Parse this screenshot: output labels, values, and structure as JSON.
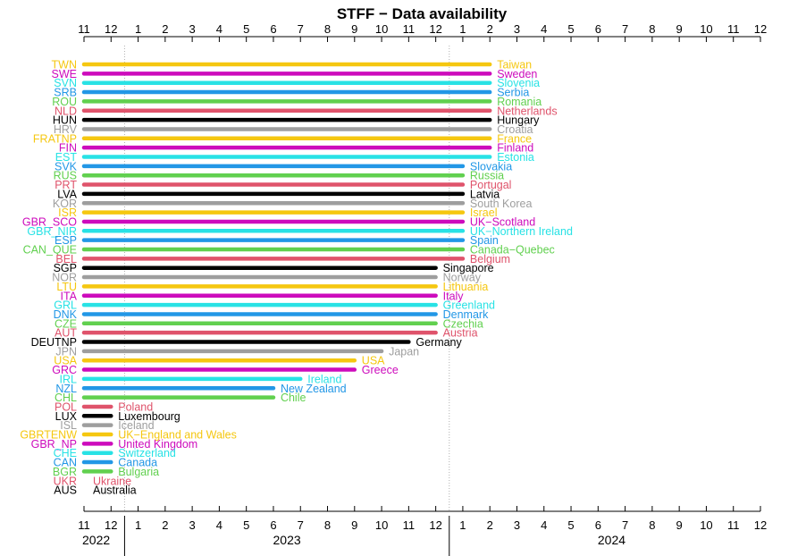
{
  "chart_data": {
    "type": "timeline",
    "title": "STFF − Data availability",
    "x_axis": {
      "unit": "month",
      "start": "2022-11",
      "end": "2024-12",
      "tick_labels": [
        "11",
        "12",
        "1",
        "2",
        "3",
        "4",
        "5",
        "6",
        "7",
        "8",
        "9",
        "10",
        "11",
        "12",
        "1",
        "2",
        "3",
        "4",
        "5",
        "6",
        "7",
        "8",
        "9",
        "10",
        "11",
        "12"
      ],
      "years": [
        {
          "label": "2022",
          "start": "2022-11"
        },
        {
          "label": "2023",
          "start": "2023-01"
        },
        {
          "label": "2024",
          "start": "2024-01"
        }
      ]
    },
    "colors": {
      "yellow": "#F5C710",
      "magenta": "#CD0BBC",
      "cyan": "#28E2E5",
      "blue": "#2297E6",
      "green": "#61D04F",
      "red": "#DF536B",
      "black": "#000000",
      "gray": "#9E9E9E"
    },
    "series": [
      {
        "code": "TWN",
        "name": "Taiwan",
        "color": "yellow",
        "start": "2022-11",
        "end": "2024-02"
      },
      {
        "code": "SWE",
        "name": "Sweden",
        "color": "magenta",
        "start": "2022-11",
        "end": "2024-02"
      },
      {
        "code": "SVN",
        "name": "Slovenia",
        "color": "cyan",
        "start": "2022-11",
        "end": "2024-02"
      },
      {
        "code": "SRB",
        "name": "Serbia",
        "color": "blue",
        "start": "2022-11",
        "end": "2024-02"
      },
      {
        "code": "ROU",
        "name": "Romania",
        "color": "green",
        "start": "2022-11",
        "end": "2024-02"
      },
      {
        "code": "NLD",
        "name": "Netherlands",
        "color": "red",
        "start": "2022-11",
        "end": "2024-02"
      },
      {
        "code": "HUN",
        "name": "Hungary",
        "color": "black",
        "start": "2022-11",
        "end": "2024-02"
      },
      {
        "code": "HRV",
        "name": "Croatia",
        "color": "gray",
        "start": "2022-11",
        "end": "2024-02"
      },
      {
        "code": "FRATNP",
        "name": "France",
        "color": "yellow",
        "start": "2022-11",
        "end": "2024-02"
      },
      {
        "code": "FIN",
        "name": "Finland",
        "color": "magenta",
        "start": "2022-11",
        "end": "2024-02"
      },
      {
        "code": "EST",
        "name": "Estonia",
        "color": "cyan",
        "start": "2022-11",
        "end": "2024-02"
      },
      {
        "code": "SVK",
        "name": "Slovakia",
        "color": "blue",
        "start": "2022-11",
        "end": "2024-01"
      },
      {
        "code": "RUS",
        "name": "Russia",
        "color": "green",
        "start": "2022-11",
        "end": "2024-01"
      },
      {
        "code": "PRT",
        "name": "Portugal",
        "color": "red",
        "start": "2022-11",
        "end": "2024-01"
      },
      {
        "code": "LVA",
        "name": "Latvia",
        "color": "black",
        "start": "2022-11",
        "end": "2024-01"
      },
      {
        "code": "KOR",
        "name": "South Korea",
        "color": "gray",
        "start": "2022-11",
        "end": "2024-01"
      },
      {
        "code": "ISR",
        "name": "Israel",
        "color": "yellow",
        "start": "2022-11",
        "end": "2024-01"
      },
      {
        "code": "GBR_SCO",
        "name": "UK−Scotland",
        "color": "magenta",
        "start": "2022-11",
        "end": "2024-01"
      },
      {
        "code": "GBR_NIR",
        "name": "UK−Northern Ireland",
        "color": "cyan",
        "start": "2022-11",
        "end": "2024-01"
      },
      {
        "code": "ESP",
        "name": "Spain",
        "color": "blue",
        "start": "2022-11",
        "end": "2024-01"
      },
      {
        "code": "CAN_QUE",
        "name": "Canada−Quebec",
        "color": "green",
        "start": "2022-11",
        "end": "2024-01"
      },
      {
        "code": "BEL",
        "name": "Belgium",
        "color": "red",
        "start": "2022-11",
        "end": "2024-01"
      },
      {
        "code": "SGP",
        "name": "Singapore",
        "color": "black",
        "start": "2022-11",
        "end": "2023-12"
      },
      {
        "code": "NOR",
        "name": "Norway",
        "color": "gray",
        "start": "2022-11",
        "end": "2023-12"
      },
      {
        "code": "LTU",
        "name": "Lithuania",
        "color": "yellow",
        "start": "2022-11",
        "end": "2023-12"
      },
      {
        "code": "ITA",
        "name": "Italy",
        "color": "magenta",
        "start": "2022-11",
        "end": "2023-12"
      },
      {
        "code": "GRL",
        "name": "Greenland",
        "color": "cyan",
        "start": "2022-11",
        "end": "2023-12"
      },
      {
        "code": "DNK",
        "name": "Denmark",
        "color": "blue",
        "start": "2022-11",
        "end": "2023-12"
      },
      {
        "code": "CZE",
        "name": "Czechia",
        "color": "green",
        "start": "2022-11",
        "end": "2023-12"
      },
      {
        "code": "AUT",
        "name": "Austria",
        "color": "red",
        "start": "2022-11",
        "end": "2023-12"
      },
      {
        "code": "DEUTNP",
        "name": "Germany",
        "color": "black",
        "start": "2022-11",
        "end": "2023-11"
      },
      {
        "code": "JPN",
        "name": "Japan",
        "color": "gray",
        "start": "2022-11",
        "end": "2023-10"
      },
      {
        "code": "USA",
        "name": "USA",
        "color": "yellow",
        "start": "2022-11",
        "end": "2023-09"
      },
      {
        "code": "GRC",
        "name": "Greece",
        "color": "magenta",
        "start": "2022-11",
        "end": "2023-09"
      },
      {
        "code": "IRL",
        "name": "Ireland",
        "color": "cyan",
        "start": "2022-11",
        "end": "2023-07"
      },
      {
        "code": "NZL",
        "name": "New Zealand",
        "color": "blue",
        "start": "2022-11",
        "end": "2023-06"
      },
      {
        "code": "CHL",
        "name": "Chile",
        "color": "green",
        "start": "2022-11",
        "end": "2023-06"
      },
      {
        "code": "POL",
        "name": "Poland",
        "color": "red",
        "start": "2022-11",
        "end": "2022-12"
      },
      {
        "code": "LUX",
        "name": "Luxembourg",
        "color": "black",
        "start": "2022-11",
        "end": "2022-12"
      },
      {
        "code": "ISL",
        "name": "Iceland",
        "color": "gray",
        "start": "2022-11",
        "end": "2022-12"
      },
      {
        "code": "GBRTENW",
        "name": "UK−England and Wales",
        "color": "yellow",
        "start": "2022-11",
        "end": "2022-12"
      },
      {
        "code": "GBR_NP",
        "name": "United Kingdom",
        "color": "magenta",
        "start": "2022-11",
        "end": "2022-12"
      },
      {
        "code": "CHE",
        "name": "Switzerland",
        "color": "cyan",
        "start": "2022-11",
        "end": "2022-12"
      },
      {
        "code": "CAN",
        "name": "Canada",
        "color": "blue",
        "start": "2022-11",
        "end": "2022-12"
      },
      {
        "code": "BGR",
        "name": "Bulgaria",
        "color": "green",
        "start": "2022-11",
        "end": "2022-12"
      },
      {
        "code": "UKR",
        "name": "Ukraine",
        "color": "red",
        "start": null,
        "end": null
      },
      {
        "code": "AUS",
        "name": "Australia",
        "color": "black",
        "start": null,
        "end": null
      }
    ]
  }
}
